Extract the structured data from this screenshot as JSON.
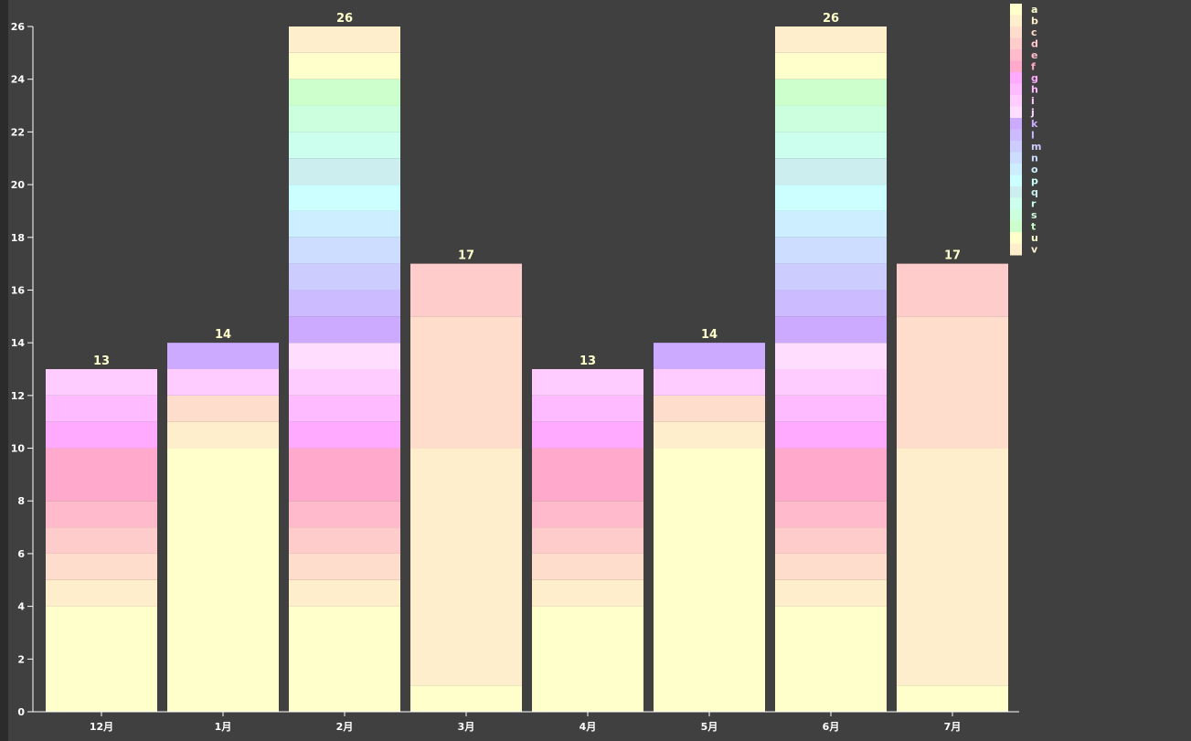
{
  "chart_data": {
    "type": "bar",
    "stacked": true,
    "title": "",
    "xlabel": "",
    "ylabel": "",
    "ylim": [
      0,
      26
    ],
    "yticks": [
      0,
      2,
      4,
      6,
      8,
      10,
      12,
      14,
      16,
      18,
      20,
      22,
      24,
      26
    ],
    "legend_position": "top-right",
    "categories": [
      "12月",
      "1月",
      "2月",
      "3月",
      "4月",
      "5月",
      "6月",
      "7月"
    ],
    "totals": [
      13,
      14,
      26,
      17,
      13,
      14,
      26,
      17
    ],
    "series": [
      {
        "name": "a",
        "color": "#ffffcc",
        "values": [
          4,
          10,
          4,
          1,
          4,
          10,
          4,
          1
        ]
      },
      {
        "name": "b",
        "color": "#ffeecc",
        "values": [
          1,
          1,
          1,
          9,
          1,
          1,
          1,
          9
        ]
      },
      {
        "name": "c",
        "color": "#ffddcc",
        "values": [
          1,
          1,
          1,
          5,
          1,
          1,
          1,
          5
        ]
      },
      {
        "name": "d",
        "color": "#ffcccc",
        "values": [
          1,
          0,
          1,
          2,
          1,
          0,
          1,
          2
        ]
      },
      {
        "name": "e",
        "color": "#ffbbcc",
        "values": [
          1,
          0,
          1,
          0,
          1,
          0,
          1,
          0
        ]
      },
      {
        "name": "f",
        "color": "#ffaacc",
        "values": [
          2,
          0,
          2,
          0,
          2,
          0,
          2,
          0
        ]
      },
      {
        "name": "g",
        "color": "#ffaaff",
        "values": [
          1,
          0,
          1,
          0,
          1,
          0,
          1,
          0
        ]
      },
      {
        "name": "h",
        "color": "#ffbbff",
        "values": [
          1,
          0,
          1,
          0,
          1,
          0,
          1,
          0
        ]
      },
      {
        "name": "i",
        "color": "#ffccff",
        "values": [
          1,
          1,
          1,
          0,
          1,
          1,
          1,
          0
        ]
      },
      {
        "name": "j",
        "color": "#ffddff",
        "values": [
          0,
          0,
          1,
          0,
          0,
          0,
          1,
          0
        ]
      },
      {
        "name": "k",
        "color": "#ccaaff",
        "values": [
          0,
          1,
          1,
          0,
          0,
          1,
          1,
          0
        ]
      },
      {
        "name": "l",
        "color": "#ccbbff",
        "values": [
          0,
          0,
          1,
          0,
          0,
          0,
          1,
          0
        ]
      },
      {
        "name": "m",
        "color": "#ccccff",
        "values": [
          0,
          0,
          1,
          0,
          0,
          0,
          1,
          0
        ]
      },
      {
        "name": "n",
        "color": "#ccddff",
        "values": [
          0,
          0,
          1,
          0,
          0,
          0,
          1,
          0
        ]
      },
      {
        "name": "o",
        "color": "#cceeff",
        "values": [
          0,
          0,
          1,
          0,
          0,
          0,
          1,
          0
        ]
      },
      {
        "name": "p",
        "color": "#ccffff",
        "values": [
          0,
          0,
          1,
          0,
          0,
          0,
          1,
          0
        ]
      },
      {
        "name": "q",
        "color": "#cceeee",
        "values": [
          0,
          0,
          1,
          0,
          0,
          0,
          1,
          0
        ]
      },
      {
        "name": "r",
        "color": "#ccffee",
        "values": [
          0,
          0,
          1,
          0,
          0,
          0,
          1,
          0
        ]
      },
      {
        "name": "s",
        "color": "#ccffdd",
        "values": [
          0,
          0,
          1,
          0,
          0,
          0,
          1,
          0
        ]
      },
      {
        "name": "t",
        "color": "#ccffcc",
        "values": [
          0,
          0,
          1,
          0,
          0,
          0,
          1,
          0
        ]
      },
      {
        "name": "u",
        "color": "#ffffcc",
        "values": [
          0,
          0,
          1,
          0,
          0,
          0,
          1,
          0
        ]
      },
      {
        "name": "v",
        "color": "#ffeecc",
        "values": [
          0,
          0,
          1,
          0,
          0,
          0,
          1,
          0
        ]
      }
    ]
  }
}
